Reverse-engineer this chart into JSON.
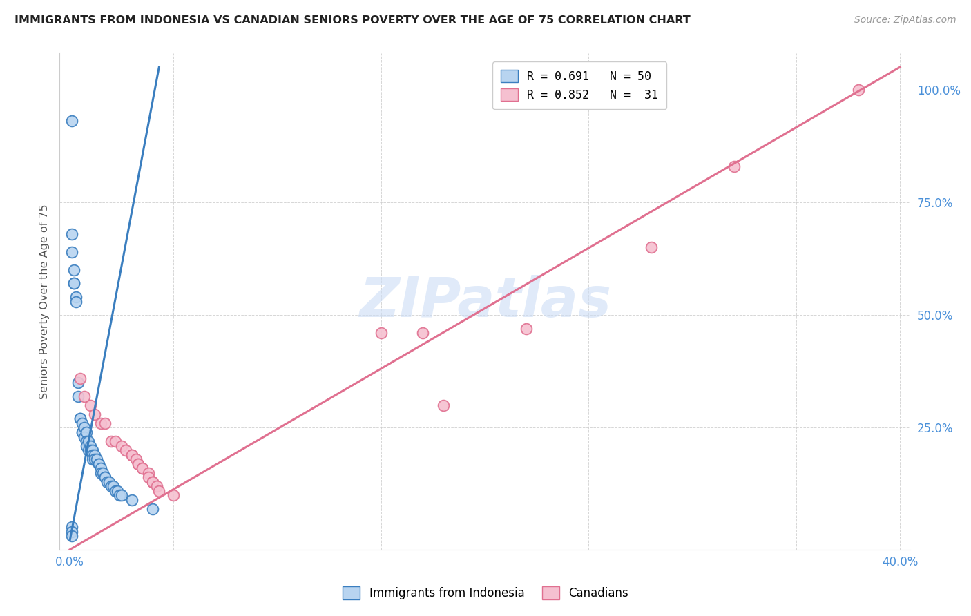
{
  "title": "IMMIGRANTS FROM INDONESIA VS CANADIAN SENIORS POVERTY OVER THE AGE OF 75 CORRELATION CHART",
  "source": "Source: ZipAtlas.com",
  "ylabel": "Seniors Poverty Over the Age of 75",
  "yaxis_ticks": [
    0,
    0.25,
    0.5,
    0.75,
    1.0
  ],
  "yaxis_labels": [
    "",
    "25.0%",
    "50.0%",
    "75.0%",
    "100.0%"
  ],
  "xaxis_ticks": [
    0,
    0.05,
    0.1,
    0.15,
    0.2,
    0.25,
    0.3,
    0.35,
    0.4
  ],
  "legend_blue": "R = 0.691   N = 50",
  "legend_pink": "R = 0.852   N =  31",
  "blue_scatter": [
    [
      0.001,
      0.93
    ],
    [
      0.001,
      0.68
    ],
    [
      0.001,
      0.64
    ],
    [
      0.002,
      0.6
    ],
    [
      0.002,
      0.57
    ],
    [
      0.002,
      0.57
    ],
    [
      0.003,
      0.54
    ],
    [
      0.003,
      0.53
    ],
    [
      0.004,
      0.35
    ],
    [
      0.004,
      0.32
    ],
    [
      0.005,
      0.27
    ],
    [
      0.005,
      0.27
    ],
    [
      0.006,
      0.26
    ],
    [
      0.006,
      0.24
    ],
    [
      0.006,
      0.24
    ],
    [
      0.007,
      0.25
    ],
    [
      0.007,
      0.23
    ],
    [
      0.008,
      0.24
    ],
    [
      0.008,
      0.22
    ],
    [
      0.008,
      0.21
    ],
    [
      0.009,
      0.22
    ],
    [
      0.009,
      0.2
    ],
    [
      0.01,
      0.21
    ],
    [
      0.01,
      0.2
    ],
    [
      0.011,
      0.2
    ],
    [
      0.011,
      0.19
    ],
    [
      0.011,
      0.18
    ],
    [
      0.012,
      0.19
    ],
    [
      0.012,
      0.18
    ],
    [
      0.013,
      0.18
    ],
    [
      0.014,
      0.17
    ],
    [
      0.014,
      0.17
    ],
    [
      0.015,
      0.16
    ],
    [
      0.015,
      0.15
    ],
    [
      0.016,
      0.15
    ],
    [
      0.017,
      0.14
    ],
    [
      0.017,
      0.14
    ],
    [
      0.018,
      0.13
    ],
    [
      0.019,
      0.13
    ],
    [
      0.02,
      0.12
    ],
    [
      0.021,
      0.12
    ],
    [
      0.022,
      0.11
    ],
    [
      0.023,
      0.11
    ],
    [
      0.024,
      0.1
    ],
    [
      0.025,
      0.1
    ],
    [
      0.03,
      0.09
    ],
    [
      0.001,
      0.03
    ],
    [
      0.001,
      0.02
    ],
    [
      0.001,
      0.01
    ],
    [
      0.04,
      0.07
    ]
  ],
  "pink_scatter": [
    [
      0.005,
      0.36
    ],
    [
      0.007,
      0.32
    ],
    [
      0.01,
      0.3
    ],
    [
      0.012,
      0.28
    ],
    [
      0.015,
      0.26
    ],
    [
      0.017,
      0.26
    ],
    [
      0.02,
      0.22
    ],
    [
      0.022,
      0.22
    ],
    [
      0.025,
      0.21
    ],
    [
      0.027,
      0.2
    ],
    [
      0.03,
      0.19
    ],
    [
      0.03,
      0.19
    ],
    [
      0.032,
      0.18
    ],
    [
      0.033,
      0.17
    ],
    [
      0.033,
      0.17
    ],
    [
      0.035,
      0.16
    ],
    [
      0.035,
      0.16
    ],
    [
      0.038,
      0.15
    ],
    [
      0.038,
      0.14
    ],
    [
      0.04,
      0.13
    ],
    [
      0.04,
      0.13
    ],
    [
      0.042,
      0.12
    ],
    [
      0.043,
      0.11
    ],
    [
      0.05,
      0.1
    ],
    [
      0.15,
      0.46
    ],
    [
      0.17,
      0.46
    ],
    [
      0.18,
      0.3
    ],
    [
      0.22,
      0.47
    ],
    [
      0.28,
      0.65
    ],
    [
      0.32,
      0.83
    ],
    [
      0.38,
      1.0
    ]
  ],
  "blue_line_x": [
    0.0,
    0.043
  ],
  "blue_line_y": [
    0.0,
    1.05
  ],
  "pink_line_x": [
    0.0,
    0.4
  ],
  "pink_line_y": [
    -0.02,
    1.05
  ],
  "blue_color": "#3a7ebf",
  "pink_color": "#e07090",
  "blue_scatter_facecolor": "#b8d4f0",
  "pink_scatter_facecolor": "#f5c0d0",
  "watermark": "ZIPatlas",
  "watermark_color": "#ccddf5",
  "background_color": "#ffffff",
  "xlim": [
    -0.005,
    0.405
  ],
  "ylim": [
    -0.02,
    1.08
  ]
}
